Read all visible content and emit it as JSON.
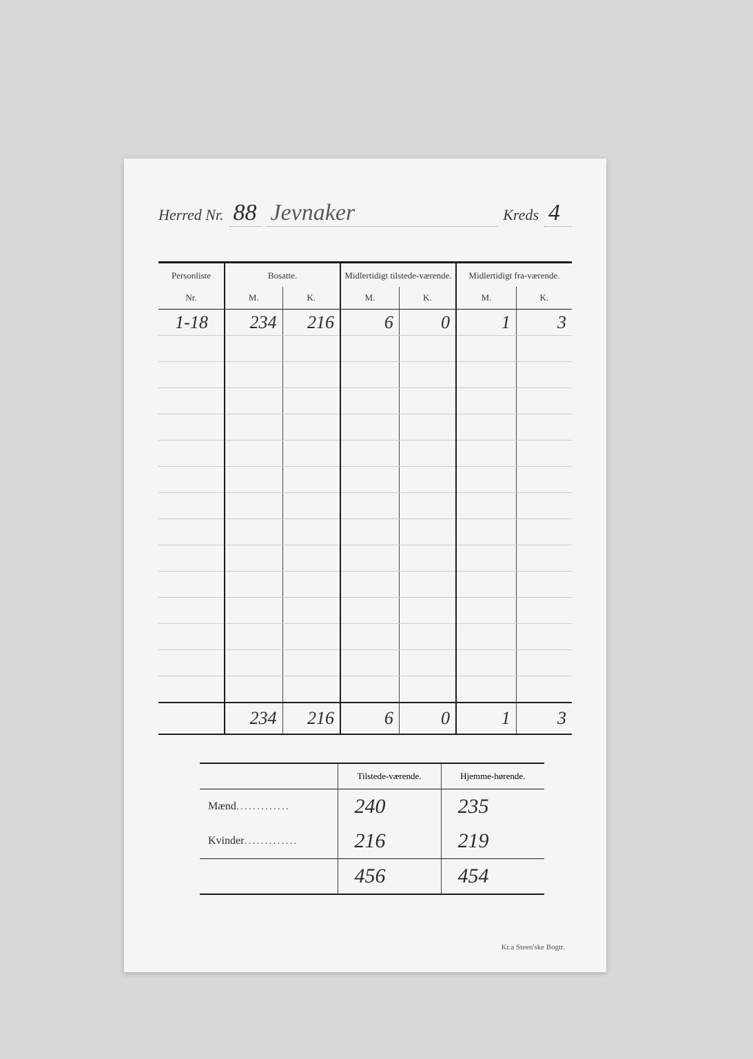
{
  "header": {
    "herred_label": "Herred Nr.",
    "herred_number": "88",
    "herred_name": "Jevnaker",
    "kreds_label": "Kreds",
    "kreds_number": "4"
  },
  "main_table": {
    "columns": {
      "personliste_label": "Personliste",
      "personliste_sub": "Nr.",
      "bosatte_label": "Bosatte.",
      "midl_tilstede_label": "Midlertidigt tilstede-værende.",
      "midl_fra_label": "Midlertidigt fra-værende.",
      "m_label": "M.",
      "k_label": "K."
    },
    "rows": [
      {
        "nr": "1-18",
        "bosatte_m": "234",
        "bosatte_k": "216",
        "tilstede_m": "6",
        "tilstede_k": "0",
        "fra_m": "1",
        "fra_k": "3"
      }
    ],
    "empty_rows": 14,
    "totals": {
      "bosatte_m": "234",
      "bosatte_k": "216",
      "tilstede_m": "6",
      "tilstede_k": "0",
      "fra_m": "1",
      "fra_k": "3"
    }
  },
  "summary": {
    "columns": {
      "tilstede_label": "Tilstede-værende.",
      "hjemme_label": "Hjemme-hørende."
    },
    "maend_label": "Mænd",
    "kvinder_label": "Kvinder",
    "maend": {
      "tilstede": "240",
      "hjemme": "235"
    },
    "kvinder": {
      "tilstede": "216",
      "hjemme": "219"
    },
    "total": {
      "tilstede": "456",
      "hjemme": "454"
    }
  },
  "footer": "Kr.a   Steen'ske Bogtr."
}
